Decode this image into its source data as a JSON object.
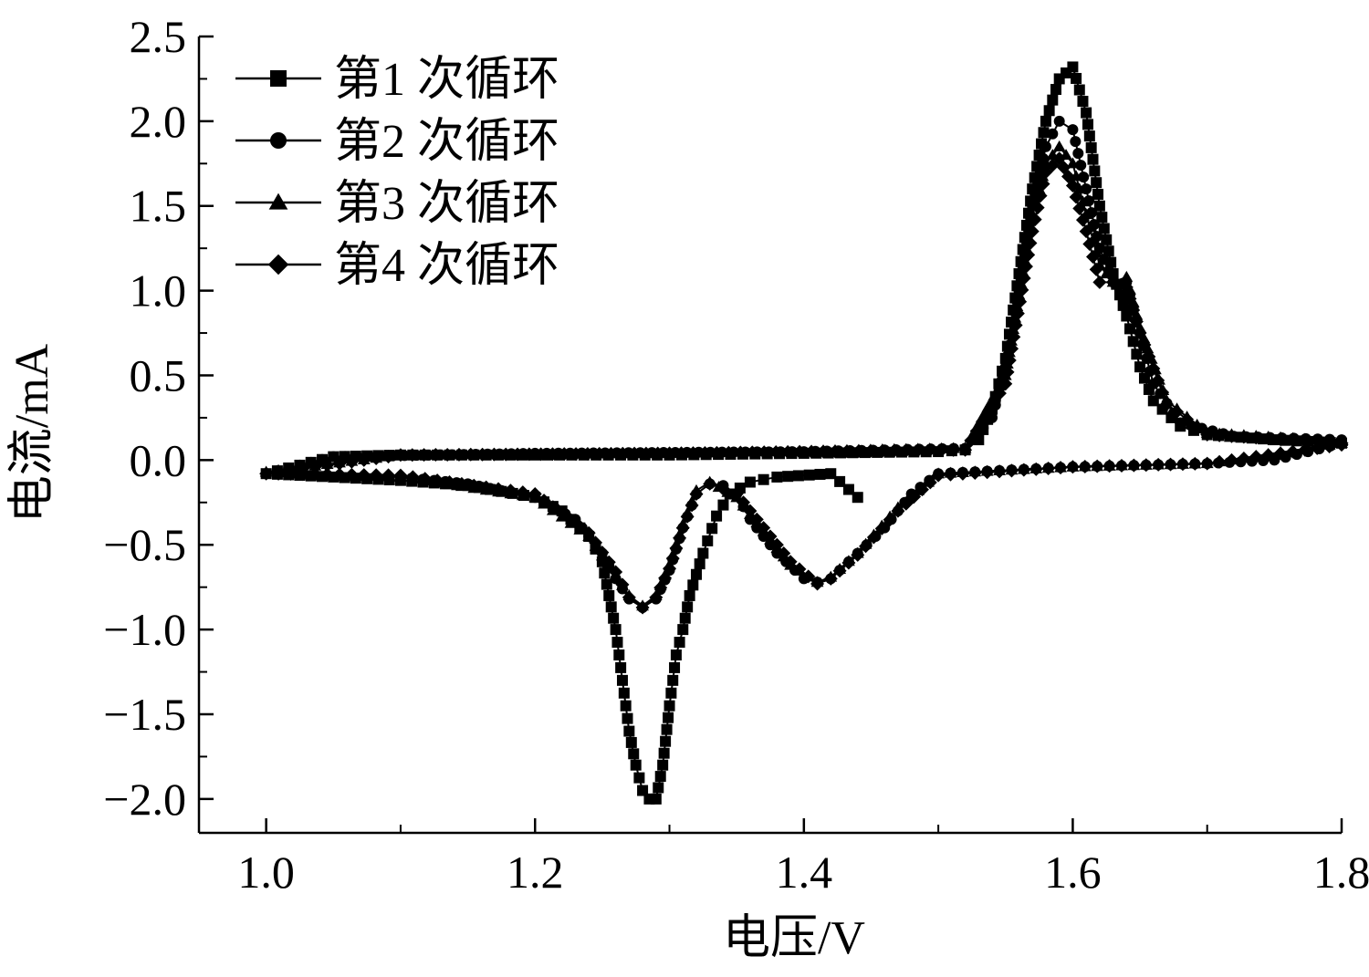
{
  "chart_data": {
    "type": "scatter",
    "xlabel": "电压/V",
    "ylabel": "电流/mA",
    "xlim": [
      0.95,
      1.8
    ],
    "ylim": [
      -2.2,
      2.5
    ],
    "x_ticks": [
      1.0,
      1.2,
      1.4,
      1.6,
      1.8
    ],
    "x_tick_labels": [
      "1.0",
      "1.2",
      "1.4",
      "1.6",
      "1.8"
    ],
    "y_ticks": [
      2.5,
      2.0,
      1.5,
      1.0,
      0.5,
      0.0,
      -0.5,
      -1.0,
      -1.5,
      -2.0
    ],
    "y_tick_labels": [
      "2.5",
      "2.0",
      "1.5",
      "1.0",
      "0.5",
      "0.0",
      "−0.5",
      "−1.0",
      "−1.5",
      "−2.0"
    ],
    "grid": false,
    "legend_position": "top-left",
    "marker_color": "#000000",
    "series": [
      {
        "name": "第1 次循环",
        "marker": "square",
        "points": [
          [
            1.44,
            -0.22
          ],
          [
            1.42,
            -0.08
          ],
          [
            1.38,
            -0.1
          ],
          [
            1.36,
            -0.13
          ],
          [
            1.345,
            -0.2
          ],
          [
            1.335,
            -0.33
          ],
          [
            1.325,
            -0.55
          ],
          [
            1.315,
            -0.8
          ],
          [
            1.31,
            -1.0
          ],
          [
            1.305,
            -1.15
          ],
          [
            1.3,
            -1.45
          ],
          [
            1.295,
            -1.8
          ],
          [
            1.29,
            -2.0
          ],
          [
            1.285,
            -2.0
          ],
          [
            1.28,
            -1.95
          ],
          [
            1.275,
            -1.8
          ],
          [
            1.27,
            -1.6
          ],
          [
            1.265,
            -1.3
          ],
          [
            1.26,
            -1.0
          ],
          [
            1.255,
            -0.8
          ],
          [
            1.25,
            -0.6
          ],
          [
            1.24,
            -0.45
          ],
          [
            1.22,
            -0.3
          ],
          [
            1.2,
            -0.22
          ],
          [
            1.15,
            -0.15
          ],
          [
            1.1,
            -0.12
          ],
          [
            1.05,
            -0.1
          ],
          [
            1.0,
            -0.08
          ],
          [
            1.05,
            0.02
          ],
          [
            1.1,
            0.03
          ],
          [
            1.2,
            0.03
          ],
          [
            1.3,
            0.03
          ],
          [
            1.4,
            0.04
          ],
          [
            1.5,
            0.05
          ],
          [
            1.52,
            0.06
          ],
          [
            1.53,
            0.12
          ],
          [
            1.54,
            0.3
          ],
          [
            1.55,
            0.6
          ],
          [
            1.56,
            1.1
          ],
          [
            1.57,
            1.6
          ],
          [
            1.58,
            2.0
          ],
          [
            1.59,
            2.25
          ],
          [
            1.6,
            2.32
          ],
          [
            1.61,
            2.05
          ],
          [
            1.62,
            1.5
          ],
          [
            1.63,
            1.1
          ],
          [
            1.64,
            0.85
          ],
          [
            1.65,
            0.55
          ],
          [
            1.66,
            0.35
          ],
          [
            1.68,
            0.2
          ],
          [
            1.7,
            0.15
          ],
          [
            1.75,
            0.12
          ],
          [
            1.8,
            0.1
          ]
        ]
      },
      {
        "name": "第2 次循环",
        "marker": "circle",
        "points": [
          [
            1.8,
            0.1
          ],
          [
            1.75,
            0.0
          ],
          [
            1.7,
            -0.02
          ],
          [
            1.6,
            -0.04
          ],
          [
            1.5,
            -0.08
          ],
          [
            1.48,
            -0.2
          ],
          [
            1.46,
            -0.4
          ],
          [
            1.44,
            -0.55
          ],
          [
            1.42,
            -0.7
          ],
          [
            1.41,
            -0.72
          ],
          [
            1.4,
            -0.7
          ],
          [
            1.38,
            -0.55
          ],
          [
            1.36,
            -0.35
          ],
          [
            1.35,
            -0.2
          ],
          [
            1.34,
            -0.15
          ],
          [
            1.33,
            -0.14
          ],
          [
            1.32,
            -0.2
          ],
          [
            1.31,
            -0.4
          ],
          [
            1.3,
            -0.65
          ],
          [
            1.29,
            -0.82
          ],
          [
            1.28,
            -0.87
          ],
          [
            1.27,
            -0.82
          ],
          [
            1.26,
            -0.7
          ],
          [
            1.25,
            -0.55
          ],
          [
            1.23,
            -0.35
          ],
          [
            1.2,
            -0.22
          ],
          [
            1.15,
            -0.14
          ],
          [
            1.1,
            -0.1
          ],
          [
            1.0,
            -0.08
          ],
          [
            1.05,
            0.02
          ],
          [
            1.2,
            0.04
          ],
          [
            1.4,
            0.05
          ],
          [
            1.52,
            0.07
          ],
          [
            1.54,
            0.25
          ],
          [
            1.55,
            0.55
          ],
          [
            1.56,
            1.0
          ],
          [
            1.57,
            1.5
          ],
          [
            1.58,
            1.85
          ],
          [
            1.59,
            2.0
          ],
          [
            1.6,
            1.95
          ],
          [
            1.61,
            1.6
          ],
          [
            1.62,
            1.25
          ],
          [
            1.63,
            1.05
          ],
          [
            1.64,
            1.05
          ],
          [
            1.65,
            0.75
          ],
          [
            1.66,
            0.45
          ],
          [
            1.68,
            0.22
          ],
          [
            1.72,
            0.14
          ],
          [
            1.8,
            0.12
          ]
        ]
      },
      {
        "name": "第3 次循环",
        "marker": "triangle",
        "points": [
          [
            1.8,
            0.1
          ],
          [
            1.7,
            -0.02
          ],
          [
            1.6,
            -0.04
          ],
          [
            1.5,
            -0.08
          ],
          [
            1.47,
            -0.28
          ],
          [
            1.44,
            -0.55
          ],
          [
            1.42,
            -0.69
          ],
          [
            1.41,
            -0.72
          ],
          [
            1.39,
            -0.62
          ],
          [
            1.37,
            -0.42
          ],
          [
            1.35,
            -0.22
          ],
          [
            1.33,
            -0.13
          ],
          [
            1.32,
            -0.18
          ],
          [
            1.31,
            -0.38
          ],
          [
            1.3,
            -0.62
          ],
          [
            1.29,
            -0.8
          ],
          [
            1.28,
            -0.86
          ],
          [
            1.27,
            -0.8
          ],
          [
            1.26,
            -0.68
          ],
          [
            1.24,
            -0.45
          ],
          [
            1.2,
            -0.22
          ],
          [
            1.1,
            -0.1
          ],
          [
            1.0,
            -0.07
          ],
          [
            1.1,
            0.03
          ],
          [
            1.3,
            0.04
          ],
          [
            1.52,
            0.07
          ],
          [
            1.55,
            0.5
          ],
          [
            1.57,
            1.45
          ],
          [
            1.58,
            1.75
          ],
          [
            1.59,
            1.85
          ],
          [
            1.6,
            1.75
          ],
          [
            1.61,
            1.45
          ],
          [
            1.62,
            1.15
          ],
          [
            1.63,
            1.05
          ],
          [
            1.64,
            1.08
          ],
          [
            1.65,
            0.78
          ],
          [
            1.67,
            0.35
          ],
          [
            1.7,
            0.16
          ],
          [
            1.8,
            0.11
          ]
        ]
      },
      {
        "name": "第4 次循环",
        "marker": "diamond",
        "points": [
          [
            1.8,
            0.09
          ],
          [
            1.7,
            -0.02
          ],
          [
            1.6,
            -0.04
          ],
          [
            1.5,
            -0.09
          ],
          [
            1.47,
            -0.3
          ],
          [
            1.44,
            -0.56
          ],
          [
            1.42,
            -0.7
          ],
          [
            1.41,
            -0.73
          ],
          [
            1.39,
            -0.6
          ],
          [
            1.37,
            -0.4
          ],
          [
            1.35,
            -0.2
          ],
          [
            1.33,
            -0.14
          ],
          [
            1.32,
            -0.2
          ],
          [
            1.31,
            -0.4
          ],
          [
            1.3,
            -0.64
          ],
          [
            1.29,
            -0.81
          ],
          [
            1.28,
            -0.87
          ],
          [
            1.27,
            -0.81
          ],
          [
            1.26,
            -0.66
          ],
          [
            1.24,
            -0.43
          ],
          [
            1.2,
            -0.2
          ],
          [
            1.1,
            -0.09
          ],
          [
            1.0,
            -0.08
          ],
          [
            1.1,
            0.03
          ],
          [
            1.3,
            0.04
          ],
          [
            1.52,
            0.06
          ],
          [
            1.55,
            0.45
          ],
          [
            1.57,
            1.35
          ],
          [
            1.58,
            1.7
          ],
          [
            1.59,
            1.78
          ],
          [
            1.6,
            1.62
          ],
          [
            1.61,
            1.35
          ],
          [
            1.62,
            1.05
          ],
          [
            1.63,
            1.05
          ],
          [
            1.64,
            1.02
          ],
          [
            1.65,
            0.75
          ],
          [
            1.67,
            0.33
          ],
          [
            1.7,
            0.15
          ],
          [
            1.8,
            0.1
          ]
        ]
      }
    ]
  }
}
